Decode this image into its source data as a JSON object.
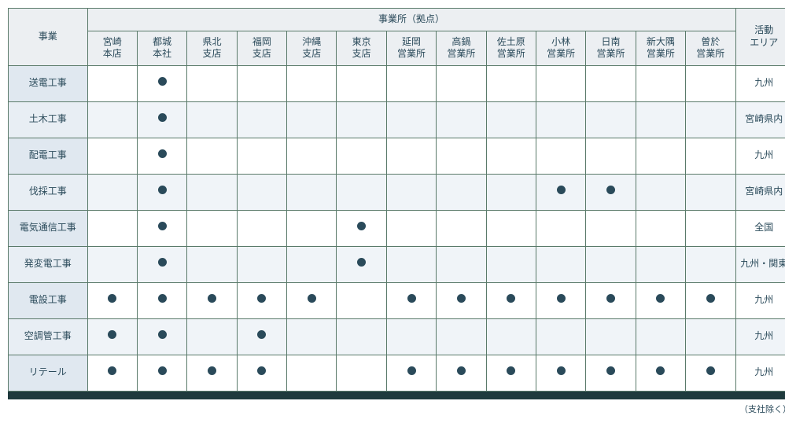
{
  "header": {
    "business_label": "事業",
    "offices_group_label": "事業所（拠点）",
    "area_label": "活動\nエリア",
    "offices": [
      "宮崎\n本店",
      "都城\n本社",
      "県北\n支店",
      "福岡\n支店",
      "沖縄\n支店",
      "東京\n支店",
      "延岡\n営業所",
      "高鍋\n営業所",
      "佐土原\n営業所",
      "小林\n営業所",
      "日南\n営業所",
      "新大隅\n営業所",
      "曽於\n営業所"
    ]
  },
  "rows": [
    {
      "name": "送電工事",
      "marks": [
        0,
        1,
        0,
        0,
        0,
        0,
        0,
        0,
        0,
        0,
        0,
        0,
        0
      ],
      "area": "九州"
    },
    {
      "name": "土木工事",
      "marks": [
        0,
        1,
        0,
        0,
        0,
        0,
        0,
        0,
        0,
        0,
        0,
        0,
        0
      ],
      "area": "宮崎県内"
    },
    {
      "name": "配電工事",
      "marks": [
        0,
        1,
        0,
        0,
        0,
        0,
        0,
        0,
        0,
        0,
        0,
        0,
        0
      ],
      "area": "九州"
    },
    {
      "name": "伐採工事",
      "marks": [
        0,
        1,
        0,
        0,
        0,
        0,
        0,
        0,
        0,
        1,
        1,
        0,
        0
      ],
      "area": "宮崎県内"
    },
    {
      "name": "電気通信工事",
      "marks": [
        0,
        1,
        0,
        0,
        0,
        1,
        0,
        0,
        0,
        0,
        0,
        0,
        0
      ],
      "area": "全国"
    },
    {
      "name": "発変電工事",
      "marks": [
        0,
        1,
        0,
        0,
        0,
        1,
        0,
        0,
        0,
        0,
        0,
        0,
        0
      ],
      "area": "九州・関東"
    },
    {
      "name": "電設工事",
      "marks": [
        1,
        1,
        1,
        1,
        1,
        0,
        1,
        1,
        1,
        1,
        1,
        1,
        1
      ],
      "area": "九州"
    },
    {
      "name": "空調管工事",
      "marks": [
        1,
        1,
        0,
        1,
        0,
        0,
        0,
        0,
        0,
        0,
        0,
        0,
        0
      ],
      "area": "九州"
    },
    {
      "name": "リテール",
      "marks": [
        1,
        1,
        1,
        1,
        0,
        0,
        1,
        1,
        1,
        1,
        1,
        1,
        1
      ],
      "area": "九州"
    }
  ],
  "footnote": "（支社除く）"
}
